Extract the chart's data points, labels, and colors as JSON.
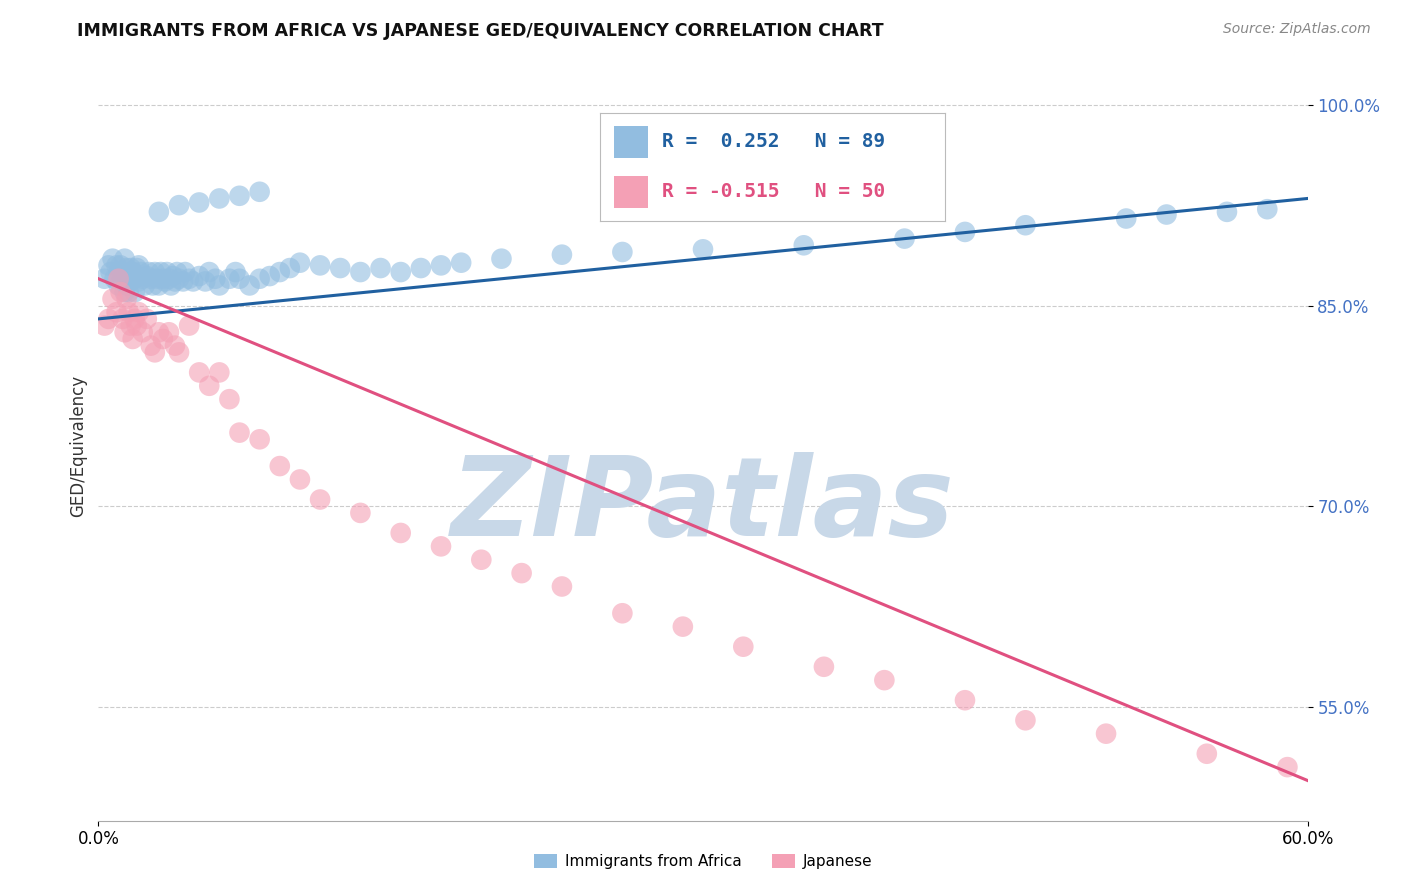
{
  "title": "IMMIGRANTS FROM AFRICA VS JAPANESE GED/EQUIVALENCY CORRELATION CHART",
  "source": "Source: ZipAtlas.com",
  "ylabel": "GED/Equivalency",
  "xlim": [
    0.0,
    0.6
  ],
  "ylim": [
    0.465,
    1.025
  ],
  "yticks": [
    0.55,
    0.7,
    0.85,
    1.0
  ],
  "ytick_labels": [
    "55.0%",
    "70.0%",
    "85.0%",
    "100.0%"
  ],
  "legend_label1": "Immigrants from Africa",
  "legend_label2": "Japanese",
  "r1": 0.252,
  "n1": 89,
  "r2": -0.515,
  "n2": 50,
  "color_blue": "#92BDE0",
  "color_pink": "#F4A0B5",
  "line_color_blue": "#2060A0",
  "line_color_pink": "#E05080",
  "blue_trend": [
    0.84,
    0.93
  ],
  "pink_trend": [
    0.87,
    0.495
  ],
  "blue_x": [
    0.003,
    0.005,
    0.006,
    0.007,
    0.008,
    0.009,
    0.01,
    0.01,
    0.011,
    0.012,
    0.012,
    0.013,
    0.013,
    0.014,
    0.014,
    0.015,
    0.015,
    0.016,
    0.016,
    0.017,
    0.018,
    0.018,
    0.019,
    0.02,
    0.02,
    0.021,
    0.022,
    0.023,
    0.024,
    0.025,
    0.026,
    0.027,
    0.028,
    0.029,
    0.03,
    0.031,
    0.032,
    0.033,
    0.034,
    0.035,
    0.036,
    0.037,
    0.038,
    0.039,
    0.04,
    0.042,
    0.043,
    0.045,
    0.047,
    0.05,
    0.053,
    0.055,
    0.058,
    0.06,
    0.065,
    0.068,
    0.07,
    0.075,
    0.08,
    0.085,
    0.09,
    0.095,
    0.1,
    0.11,
    0.12,
    0.13,
    0.14,
    0.15,
    0.16,
    0.17,
    0.18,
    0.2,
    0.23,
    0.26,
    0.3,
    0.35,
    0.4,
    0.43,
    0.46,
    0.51,
    0.53,
    0.56,
    0.58,
    0.03,
    0.04,
    0.05,
    0.06,
    0.07,
    0.08
  ],
  "blue_y": [
    0.87,
    0.88,
    0.875,
    0.885,
    0.87,
    0.88,
    0.875,
    0.865,
    0.88,
    0.875,
    0.87,
    0.86,
    0.885,
    0.878,
    0.865,
    0.872,
    0.86,
    0.878,
    0.868,
    0.875,
    0.87,
    0.86,
    0.878,
    0.868,
    0.88,
    0.875,
    0.87,
    0.865,
    0.872,
    0.875,
    0.87,
    0.865,
    0.875,
    0.87,
    0.865,
    0.875,
    0.87,
    0.868,
    0.875,
    0.87,
    0.865,
    0.872,
    0.868,
    0.875,
    0.87,
    0.868,
    0.875,
    0.87,
    0.868,
    0.872,
    0.868,
    0.875,
    0.87,
    0.865,
    0.87,
    0.875,
    0.87,
    0.865,
    0.87,
    0.872,
    0.875,
    0.878,
    0.882,
    0.88,
    0.878,
    0.875,
    0.878,
    0.875,
    0.878,
    0.88,
    0.882,
    0.885,
    0.888,
    0.89,
    0.892,
    0.895,
    0.9,
    0.905,
    0.91,
    0.915,
    0.918,
    0.92,
    0.922,
    0.92,
    0.925,
    0.927,
    0.93,
    0.932,
    0.935
  ],
  "pink_x": [
    0.003,
    0.005,
    0.007,
    0.009,
    0.01,
    0.011,
    0.012,
    0.013,
    0.014,
    0.015,
    0.016,
    0.017,
    0.018,
    0.019,
    0.02,
    0.022,
    0.024,
    0.026,
    0.028,
    0.03,
    0.032,
    0.035,
    0.038,
    0.04,
    0.045,
    0.05,
    0.055,
    0.06,
    0.065,
    0.07,
    0.08,
    0.09,
    0.1,
    0.11,
    0.13,
    0.15,
    0.17,
    0.19,
    0.21,
    0.23,
    0.26,
    0.29,
    0.32,
    0.36,
    0.39,
    0.43,
    0.46,
    0.5,
    0.55,
    0.59
  ],
  "pink_y": [
    0.835,
    0.84,
    0.855,
    0.845,
    0.87,
    0.86,
    0.84,
    0.83,
    0.855,
    0.845,
    0.835,
    0.825,
    0.84,
    0.835,
    0.845,
    0.83,
    0.84,
    0.82,
    0.815,
    0.83,
    0.825,
    0.83,
    0.82,
    0.815,
    0.835,
    0.8,
    0.79,
    0.8,
    0.78,
    0.755,
    0.75,
    0.73,
    0.72,
    0.705,
    0.695,
    0.68,
    0.67,
    0.66,
    0.65,
    0.64,
    0.62,
    0.61,
    0.595,
    0.58,
    0.57,
    0.555,
    0.54,
    0.53,
    0.515,
    0.505
  ],
  "watermark": "ZIPatlas",
  "watermark_color": "#C8D8E8",
  "background_color": "#FFFFFF",
  "grid_color": "#CCCCCC"
}
